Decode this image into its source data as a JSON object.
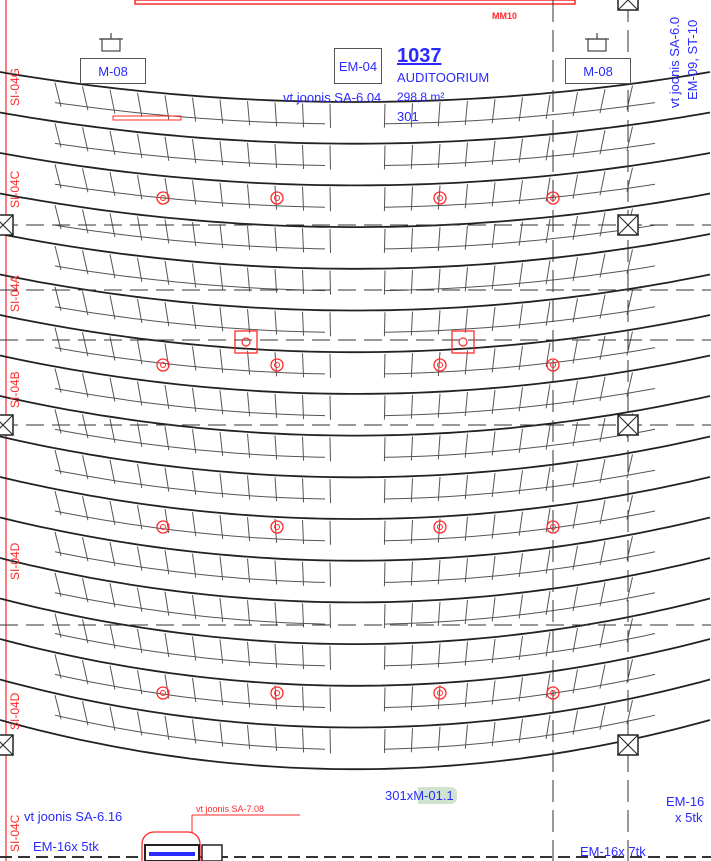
{
  "room": {
    "number": "1037",
    "name": "AUDITOORIUM",
    "area": "298,8 m²",
    "code": "301",
    "reference": "vt joonis SA-6.04"
  },
  "labels": {
    "top_red_mark": "MM10",
    "em04": "EM-04",
    "m08_left": "M-08",
    "m08_right": "M-08",
    "right_vertical_1": "vt joonis SA-6.0",
    "right_vertical_2": "EM-09, ST-10",
    "seat_count": "301xM-01.1",
    "ref_bottom_left": "vt joonis SA-6.16",
    "ref_bottom_red": "vt joonis SA-7.08",
    "em16_left": "EM-16x 5tk",
    "em16_right_top": "EM-16",
    "em16_right_top2": "x 5tk",
    "em16_bottom_right": "EM-16x 7tk"
  },
  "section_marks": [
    "SI-04G",
    "SI-04C",
    "SI-04A",
    "SI-04B",
    "SI-04D",
    "SI-04D",
    "SI-04C"
  ],
  "colors": {
    "annotation": "#2a2aff",
    "red": "#ff2a2a",
    "line": "#222222",
    "highlight": "#cfe3cf"
  }
}
